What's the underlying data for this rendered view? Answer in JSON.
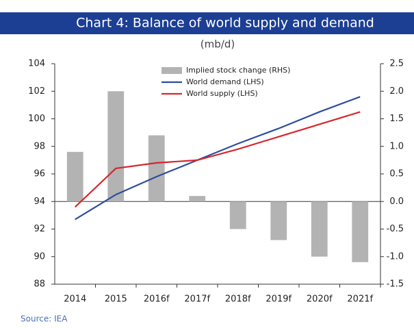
{
  "chart_data": {
    "type": "combo",
    "title": "Chart 4: Balance of world supply and demand",
    "subtitle": "(mb/d)",
    "source": "Source: IEA",
    "categories": [
      "2014",
      "2015",
      "2016f",
      "2017f",
      "2018f",
      "2019f",
      "2020f",
      "2021f"
    ],
    "series": [
      {
        "name": "Implied stock change (RHS)",
        "type": "bar",
        "axis": "y2",
        "color": "#b3b3b3",
        "values": [
          0.9,
          2.0,
          1.2,
          0.1,
          -0.5,
          -0.7,
          -1.0,
          -1.1
        ]
      },
      {
        "name": "World demand (LHS)",
        "type": "line",
        "color": "#2e4d9e",
        "values": [
          92.7,
          94.5,
          95.8,
          97.0,
          98.2,
          99.3,
          100.5,
          101.6
        ]
      },
      {
        "name": "World supply (LHS)",
        "type": "line",
        "color": "#d6262d",
        "values": [
          93.6,
          96.4,
          96.8,
          97.0,
          97.8,
          98.7,
          99.6,
          100.5
        ]
      }
    ],
    "ylim": [
      88,
      104
    ],
    "yticks": [
      88,
      90,
      92,
      94,
      96,
      98,
      100,
      102,
      104
    ],
    "y2lim": [
      -1.5,
      2.5
    ],
    "y2ticks": [
      -1.5,
      {
        "value": -1.0,
        "label": "-1.0"
      },
      -0.5,
      {
        "value": 0.0,
        "label": "0.0"
      },
      0.5,
      {
        "value": 1.0,
        "label": "1.0"
      },
      1.5,
      {
        "value": 2.0,
        "label": "2.0"
      },
      2.5
    ],
    "legend": "top"
  }
}
